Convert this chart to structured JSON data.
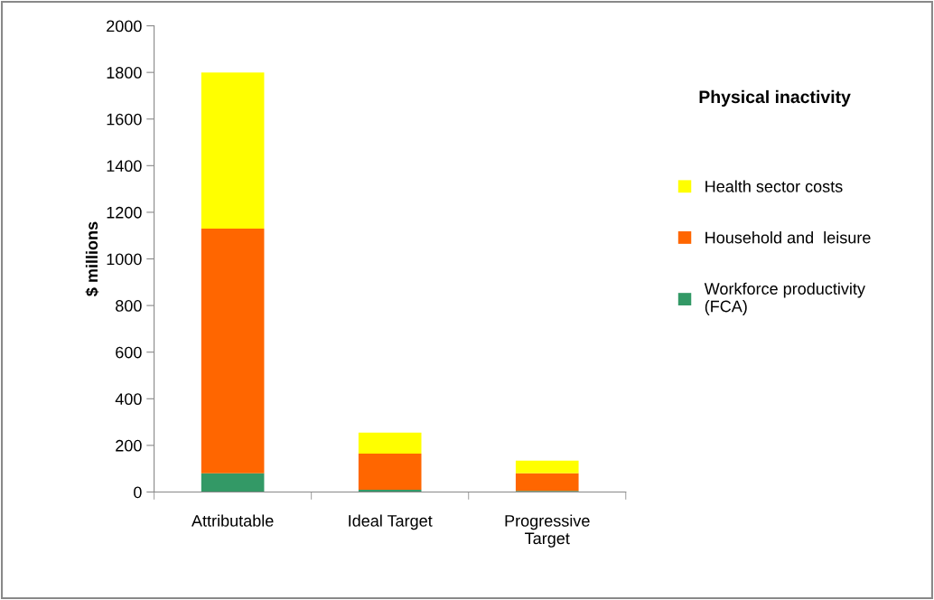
{
  "chart_data": {
    "type": "bar",
    "stacked": true,
    "ylabel": "$ millions",
    "legend_title": "Physical inactivity",
    "categories": [
      "Attributable",
      "Ideal Target",
      "Progressive\nTarget"
    ],
    "series": [
      {
        "name": "Workforce productivity\n(FCA)",
        "color": "#339966",
        "values": [
          80,
          10,
          5
        ]
      },
      {
        "name": "Household and  leisure",
        "color": "#ff6600",
        "values": [
          1050,
          155,
          75
        ]
      },
      {
        "name": "Health sector costs",
        "color": "#ffff00",
        "values": [
          670,
          90,
          55
        ]
      }
    ],
    "ylim": [
      0,
      2000
    ],
    "yticks": [
      0,
      200,
      400,
      600,
      800,
      1000,
      1200,
      1400,
      1600,
      1800,
      2000
    ],
    "grid": false,
    "legend": "right"
  }
}
